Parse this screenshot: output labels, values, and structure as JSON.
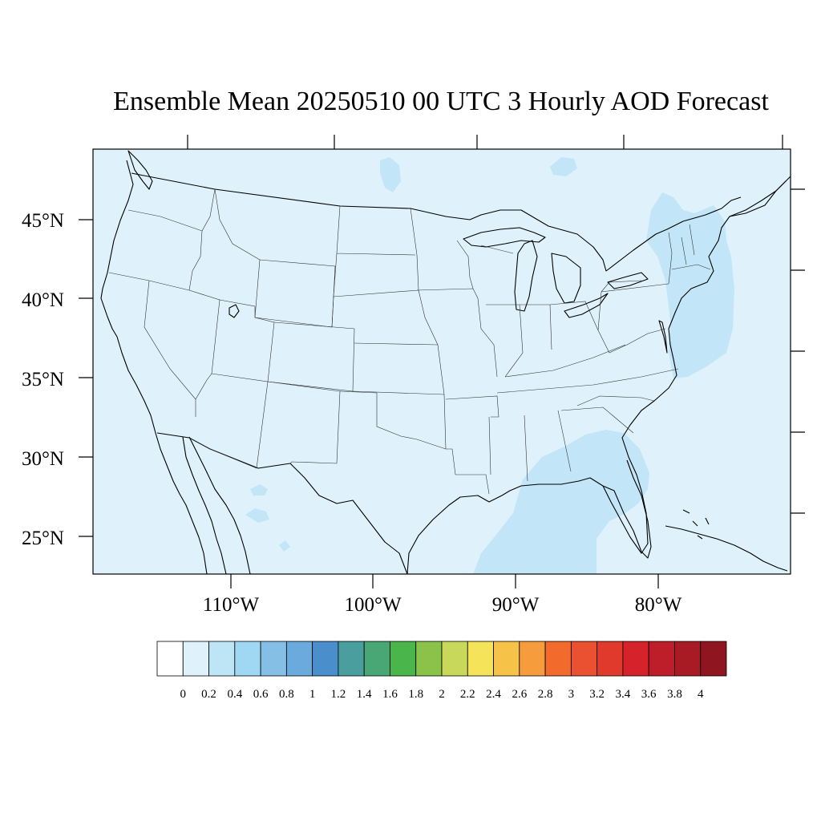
{
  "title": "Ensemble Mean 20250510 00 UTC 3 Hourly AOD Forecast",
  "lat_labels": [
    "45°N",
    "40°N",
    "35°N",
    "30°N",
    "25°N"
  ],
  "lon_labels": [
    "110°W",
    "100°W",
    "90°W",
    "80°W"
  ],
  "colorbar": {
    "labels": [
      "0",
      "0.2",
      "0.4",
      "0.6",
      "0.8",
      "1",
      "1.2",
      "1.4",
      "1.6",
      "1.8",
      "2",
      "2.2",
      "2.4",
      "2.6",
      "2.8",
      "3",
      "3.2",
      "3.4",
      "3.6",
      "3.8",
      "4"
    ],
    "colors": [
      "#ffffff",
      "#dff2fb",
      "#bde5f6",
      "#a0d8f3",
      "#85bfe6",
      "#6aaadc",
      "#4a8ecb",
      "#4a9e9e",
      "#49a776",
      "#4ab54a",
      "#8bc34a",
      "#c8d85a",
      "#f5e45a",
      "#f6c248",
      "#f69c3c",
      "#f26b2d",
      "#ea5130",
      "#e03a2c",
      "#d6232b",
      "#be1e2a",
      "#a81a24",
      "#8f1620"
    ]
  },
  "map": {
    "background_color": "#dff2fb",
    "plume_color": "#c2e6f7"
  }
}
